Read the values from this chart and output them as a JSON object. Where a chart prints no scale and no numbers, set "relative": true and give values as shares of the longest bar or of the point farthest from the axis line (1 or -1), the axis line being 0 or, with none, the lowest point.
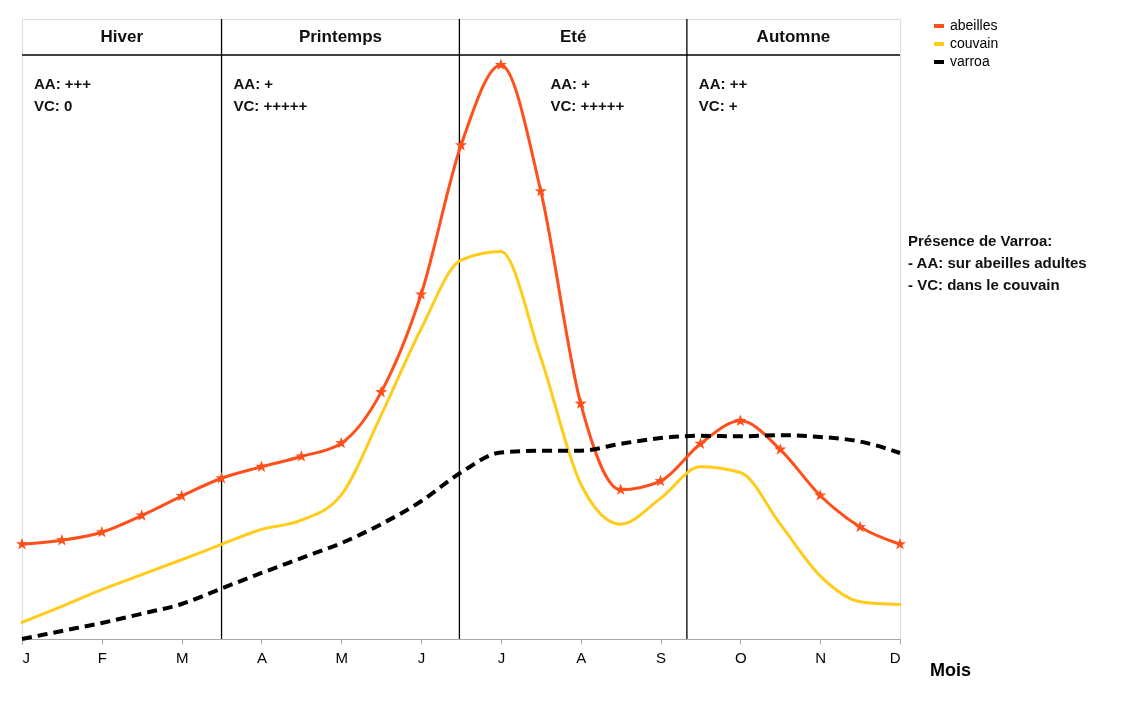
{
  "chart_data": {
    "type": "line",
    "relative": true,
    "xlabel": "Mois",
    "categories": [
      "J",
      null,
      "F",
      null,
      "M",
      null,
      "A",
      null,
      "M",
      null,
      "J",
      null,
      "J",
      null,
      "A",
      null,
      "S",
      null,
      "O",
      null,
      "N",
      null,
      "D"
    ],
    "series": [
      {
        "name": "abeilles",
        "color": "#ff4f1a",
        "marker": "star",
        "line_style": "solid",
        "values": [
          0.165,
          0.172,
          0.186,
          0.215,
          0.249,
          0.28,
          0.3,
          0.318,
          0.341,
          0.43,
          0.6,
          0.86,
          1,
          0.78,
          0.41,
          0.26,
          0.275,
          0.34,
          0.38,
          0.33,
          0.25,
          0.195,
          0.165
        ]
      },
      {
        "name": "couvain",
        "color": "#ffcc1a",
        "marker": "none",
        "line_style": "solid",
        "values": [
          0.029,
          0.057,
          0.086,
          0.112,
          0.138,
          0.165,
          0.191,
          0.207,
          0.251,
          0.39,
          0.54,
          0.66,
          0.675,
          0.49,
          0.27,
          0.2,
          0.245,
          0.3,
          0.29,
          0.2,
          0.11,
          0.065,
          0.06
        ]
      },
      {
        "name": "varroa",
        "color": "#000000",
        "marker": "none",
        "line_style": "dashed",
        "values": [
          0,
          0.014,
          0.028,
          0.044,
          0.061,
          0.088,
          0.115,
          0.141,
          0.167,
          0.2,
          0.24,
          0.29,
          0.325,
          0.328,
          0.328,
          0.34,
          0.35,
          0.354,
          0.353,
          0.355,
          0.352,
          0.344,
          0.324
        ]
      }
    ],
    "annotations": [
      "Hiver",
      "Printemps",
      "Eté",
      "Automne",
      "AA: +++\nVC: 0",
      "AA: +\nVC: +++++",
      "AA: +\nVC: +++++",
      "AA: ++\nVC: +",
      "Présence de Varroa:\n- AA: sur abeilles adultes\n- VC: dans le couvain"
    ],
    "legend": "right"
  }
}
